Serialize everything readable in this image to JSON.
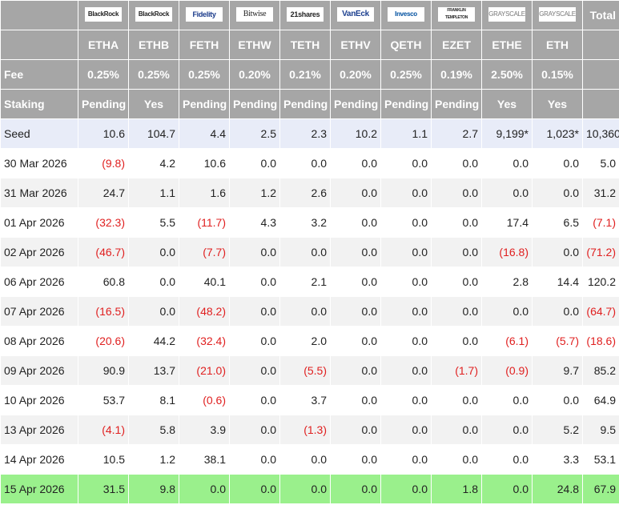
{
  "header": {
    "logos": [
      "BlackRock",
      "BlackRock",
      "Fidelity",
      "Bitwise",
      "21shares",
      "VanEck",
      "Invesco",
      "FRANKLIN TEMPLETON",
      "GRAYSCALE",
      "GRAYSCALE"
    ],
    "total": "Total",
    "tickers": [
      "ETHA",
      "ETHB",
      "FETH",
      "ETHW",
      "TETH",
      "ETHV",
      "QETH",
      "EZET",
      "ETHE",
      "ETH"
    ],
    "fee_label": "Fee",
    "fees": [
      "0.25%",
      "0.25%",
      "0.25%",
      "0.20%",
      "0.21%",
      "0.20%",
      "0.25%",
      "0.19%",
      "2.50%",
      "0.15%"
    ],
    "staking_label": "Staking",
    "staking": [
      "Pending",
      "Yes",
      "Pending",
      "Pending",
      "Pending",
      "Pending",
      "Pending",
      "Pending",
      "Yes",
      "Yes"
    ]
  },
  "rows": [
    {
      "label": "Seed",
      "cells": [
        "10.6",
        "104.7",
        "4.4",
        "2.5",
        "2.3",
        "10.2",
        "1.1",
        "2.7",
        "9,199*",
        "1,023*",
        "10,360"
      ]
    },
    {
      "label": "30 Mar 2026",
      "cells": [
        "(9.8)",
        "4.2",
        "10.6",
        "0.0",
        "0.0",
        "0.0",
        "0.0",
        "0.0",
        "0.0",
        "0.0",
        "5.0"
      ]
    },
    {
      "label": "31 Mar 2026",
      "cells": [
        "24.7",
        "1.1",
        "1.6",
        "1.2",
        "2.6",
        "0.0",
        "0.0",
        "0.0",
        "0.0",
        "0.0",
        "31.2"
      ]
    },
    {
      "label": "01 Apr 2026",
      "cells": [
        "(32.3)",
        "5.5",
        "(11.7)",
        "4.3",
        "3.2",
        "0.0",
        "0.0",
        "0.0",
        "17.4",
        "6.5",
        "(7.1)"
      ]
    },
    {
      "label": "02 Apr 2026",
      "cells": [
        "(46.7)",
        "0.0",
        "(7.7)",
        "0.0",
        "0.0",
        "0.0",
        "0.0",
        "0.0",
        "(16.8)",
        "0.0",
        "(71.2)"
      ]
    },
    {
      "label": "06 Apr 2026",
      "cells": [
        "60.8",
        "0.0",
        "40.1",
        "0.0",
        "2.1",
        "0.0",
        "0.0",
        "0.0",
        "2.8",
        "14.4",
        "120.2"
      ]
    },
    {
      "label": "07 Apr 2026",
      "cells": [
        "(16.5)",
        "0.0",
        "(48.2)",
        "0.0",
        "0.0",
        "0.0",
        "0.0",
        "0.0",
        "0.0",
        "0.0",
        "(64.7)"
      ]
    },
    {
      "label": "08 Apr 2026",
      "cells": [
        "(20.6)",
        "44.2",
        "(32.4)",
        "0.0",
        "2.0",
        "0.0",
        "0.0",
        "0.0",
        "(6.1)",
        "(5.7)",
        "(18.6)"
      ]
    },
    {
      "label": "09 Apr 2026",
      "cells": [
        "90.9",
        "13.7",
        "(21.0)",
        "0.0",
        "(5.5)",
        "0.0",
        "0.0",
        "(1.7)",
        "(0.9)",
        "9.7",
        "85.2"
      ]
    },
    {
      "label": "10 Apr 2026",
      "cells": [
        "53.7",
        "8.1",
        "(0.6)",
        "0.0",
        "3.7",
        "0.0",
        "0.0",
        "0.0",
        "0.0",
        "0.0",
        "64.9"
      ]
    },
    {
      "label": "13 Apr 2026",
      "cells": [
        "(4.1)",
        "5.8",
        "3.9",
        "0.0",
        "(1.3)",
        "0.0",
        "0.0",
        "0.0",
        "0.0",
        "5.2",
        "9.5"
      ]
    },
    {
      "label": "14 Apr 2026",
      "cells": [
        "10.5",
        "1.2",
        "38.1",
        "0.0",
        "0.0",
        "0.0",
        "0.0",
        "0.0",
        "0.0",
        "3.3",
        "53.1"
      ]
    },
    {
      "label": "15 Apr 2026",
      "cells": [
        "31.5",
        "9.8",
        "0.0",
        "0.0",
        "0.0",
        "0.0",
        "0.0",
        "1.8",
        "0.0",
        "24.8",
        "67.9"
      ]
    }
  ]
}
